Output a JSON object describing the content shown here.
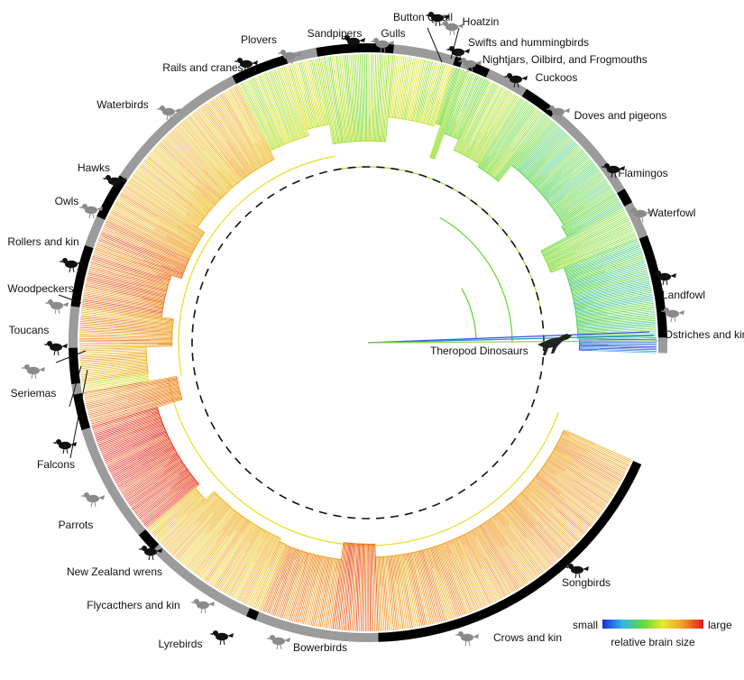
{
  "theropod_label": "Theropod Dinosaurs",
  "legend": {
    "small": "small",
    "large": "large",
    "caption": "relative brain size",
    "gradient": [
      "#1a2fd6",
      "#2fb9e6",
      "#5fd93a",
      "#e8e831",
      "#f29a28",
      "#e01b1b"
    ]
  },
  "ring_colors": {
    "black": "#000000",
    "grey": "#9b9b9b"
  },
  "clades": [
    {
      "name": "Ostriches and kin",
      "ring": "grey",
      "icon": "ostrich-icon",
      "brain": 0.08
    },
    {
      "name": "Landfowl",
      "ring": "black",
      "icon": "chicken-icon",
      "brain": 0.35
    },
    {
      "name": "Waterfowl",
      "ring": "grey",
      "icon": "duck-icon",
      "brain": 0.45
    },
    {
      "name": "Flamingos",
      "ring": "black",
      "icon": "flamingo-icon",
      "brain": 0.4
    },
    {
      "name": "Doves and pigeons",
      "ring": "grey",
      "icon": "pigeon-icon",
      "brain": 0.38
    },
    {
      "name": "Cuckoos",
      "ring": "black",
      "icon": "cuckoo-icon",
      "brain": 0.45
    },
    {
      "name": "Nightjars, Oilbird, and Frogmouths",
      "ring": "grey",
      "icon": "nightjar-icon",
      "brain": 0.5
    },
    {
      "name": "Swifts and hummingbirds",
      "ring": "black",
      "icon": "hummingbird-icon",
      "brain": 0.45
    },
    {
      "name": "Hoatzin",
      "ring": "grey",
      "icon": "hoatzin-icon",
      "brain": 0.5
    },
    {
      "name": "Button Quail",
      "ring": "black",
      "icon": "quail-icon",
      "brain": 0.45
    },
    {
      "name": "Gulls",
      "ring": "grey",
      "icon": "gull-icon",
      "brain": 0.55
    },
    {
      "name": "Sandpipers",
      "ring": "black",
      "icon": "sandpiper-icon",
      "brain": 0.5
    },
    {
      "name": "Plovers",
      "ring": "grey",
      "icon": "plover-icon",
      "brain": 0.55
    },
    {
      "name": "Rails and cranes",
      "ring": "black",
      "icon": "crane-icon",
      "brain": 0.55
    },
    {
      "name": "Waterbirds",
      "ring": "grey",
      "icon": "cormorant-icon",
      "brain": 0.72
    },
    {
      "name": "Hawks",
      "ring": "black",
      "icon": "hawk-icon",
      "brain": 0.75
    },
    {
      "name": "Owls",
      "ring": "grey",
      "icon": "owl-icon",
      "brain": 0.85
    },
    {
      "name": "Rollers and kin",
      "ring": "black",
      "icon": "roller-icon",
      "brain": 0.85
    },
    {
      "name": "Woodpeckers",
      "ring": "grey",
      "icon": "woodpecker-icon",
      "brain": 0.78
    },
    {
      "name": "Toucans",
      "ring": "black",
      "icon": "toucan-icon",
      "brain": 0.72
    },
    {
      "name": "Seriemas",
      "ring": "grey",
      "icon": "seriema-icon",
      "brain": 0.6
    },
    {
      "name": "Falcons",
      "ring": "black",
      "icon": "falcon-icon",
      "brain": 0.82
    },
    {
      "name": "Parrots",
      "ring": "grey",
      "icon": "parrot-icon",
      "brain": 0.95
    },
    {
      "name": "New Zealand wrens",
      "ring": "black",
      "icon": "wren-icon",
      "brain": 0.7
    },
    {
      "name": "Flycacthers and kin",
      "ring": "grey",
      "icon": "flycatcher-icon",
      "brain": 0.72
    },
    {
      "name": "Lyrebirds",
      "ring": "black",
      "icon": "lyrebird-icon",
      "brain": 0.75
    },
    {
      "name": "Bowerbirds",
      "ring": "grey",
      "icon": "bowerbird-icon",
      "brain": 0.8
    },
    {
      "name": "Songbirds",
      "ring": "black",
      "icon": "songbird-icon",
      "brain": 0.78
    },
    {
      "name": "Crows and kin",
      "ring": "grey",
      "icon": "crow-icon",
      "brain": 0.88
    }
  ]
}
